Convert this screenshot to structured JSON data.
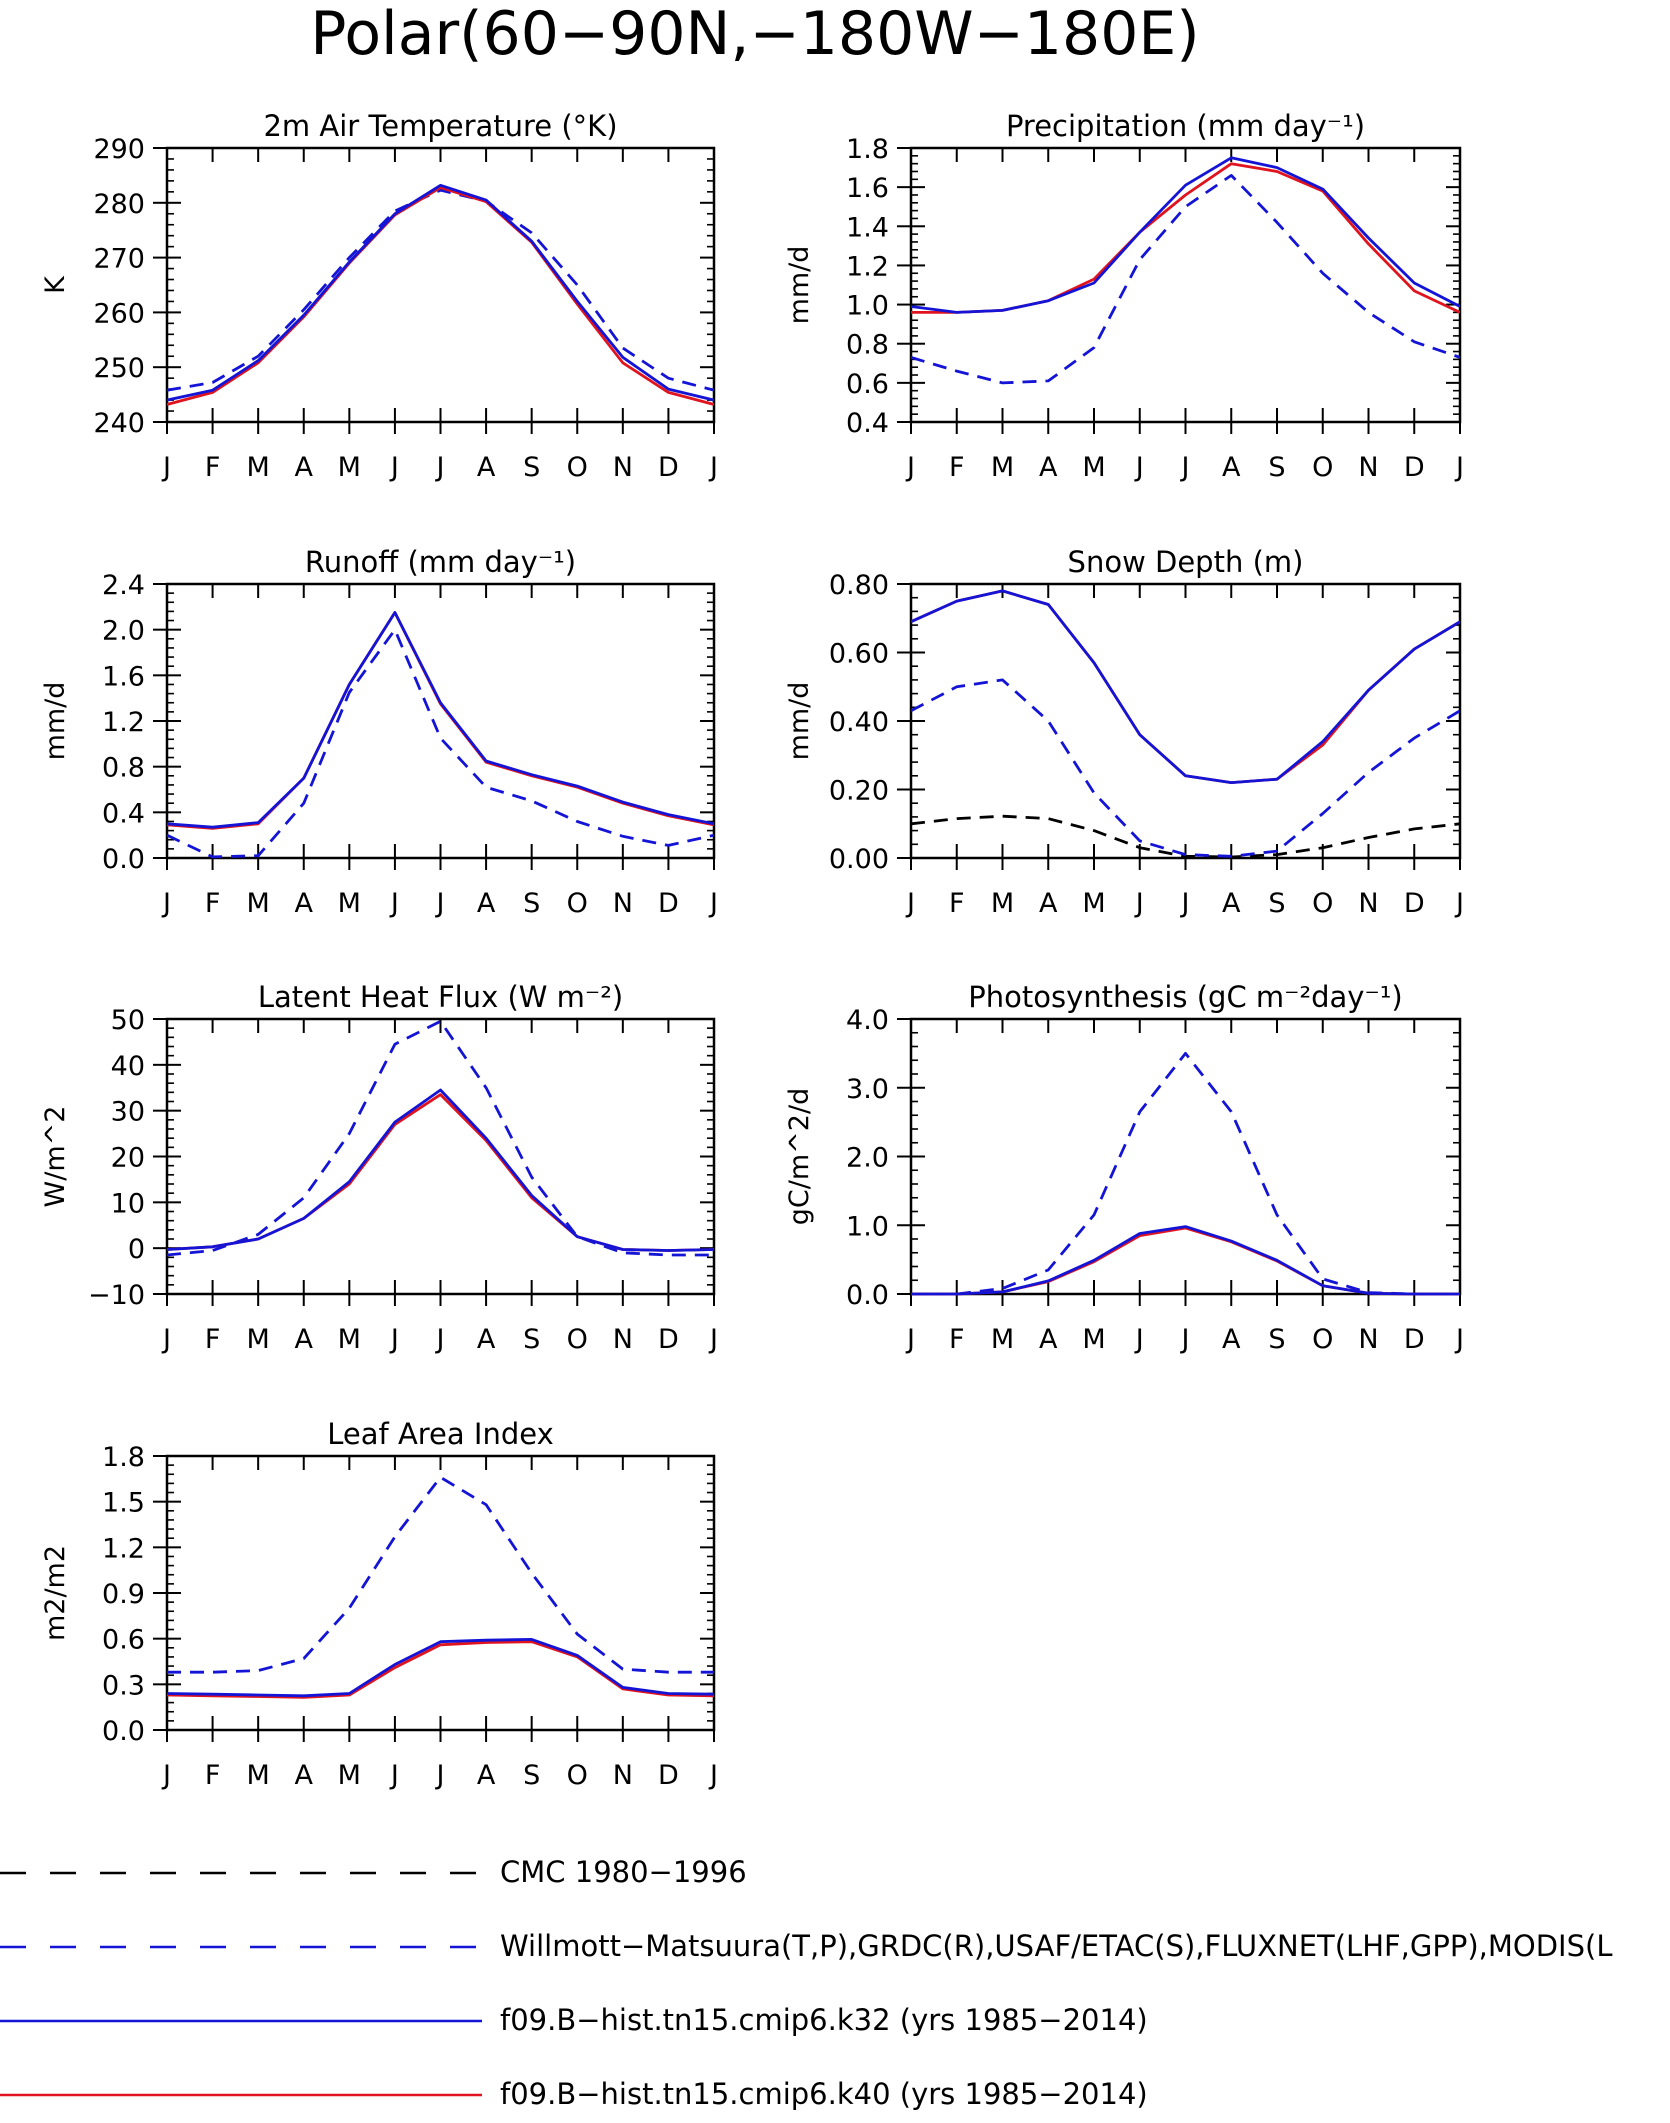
{
  "title": "Polar(60−90N,−180W−180E)",
  "colors": {
    "model_k32": "#1414d6",
    "model_k40": "#e0141e",
    "obs": "#1414d6",
    "cmc": "#000000"
  },
  "chart_data": [
    {
      "type": "line",
      "title": "2m Air Temperature (°K)",
      "ylabel": "K",
      "categories": [
        "J",
        "F",
        "M",
        "A",
        "M",
        "J",
        "J",
        "A",
        "S",
        "O",
        "N",
        "D",
        "J"
      ],
      "ylim": [
        240,
        290
      ],
      "yticks": [
        240,
        250,
        260,
        270,
        280,
        290
      ],
      "ytick_labels": [
        "240",
        "250",
        "260",
        "270",
        "280",
        "290"
      ],
      "series": [
        {
          "key": "obs",
          "values": [
            245.8,
            247.2,
            252.0,
            260.5,
            270.0,
            278.5,
            282.3,
            280.3,
            274.5,
            265.0,
            253.5,
            248.0,
            245.8
          ]
        },
        {
          "key": "k40",
          "values": [
            243.2,
            245.4,
            250.8,
            259.2,
            269.0,
            277.8,
            282.8,
            280.2,
            272.8,
            261.5,
            250.8,
            245.4,
            243.2
          ]
        },
        {
          "key": "k32",
          "values": [
            244.0,
            245.8,
            251.2,
            259.5,
            269.2,
            278.0,
            283.2,
            280.5,
            273.0,
            262.0,
            251.8,
            246.0,
            244.0
          ]
        }
      ]
    },
    {
      "type": "line",
      "title": "Precipitation (mm day⁻¹)",
      "ylabel": "mm/d",
      "categories": [
        "J",
        "F",
        "M",
        "A",
        "M",
        "J",
        "J",
        "A",
        "S",
        "O",
        "N",
        "D",
        "J"
      ],
      "ylim": [
        0.4,
        1.8
      ],
      "yticks": [
        0.4,
        0.6,
        0.8,
        1.0,
        1.2,
        1.4,
        1.6,
        1.8
      ],
      "ytick_labels": [
        "0.4",
        "0.6",
        "0.8",
        "1.0",
        "1.2",
        "1.4",
        "1.6",
        "1.8"
      ],
      "series": [
        {
          "key": "obs",
          "values": [
            0.73,
            0.66,
            0.6,
            0.61,
            0.78,
            1.23,
            1.5,
            1.66,
            1.42,
            1.16,
            0.96,
            0.81,
            0.73
          ]
        },
        {
          "key": "k40",
          "values": [
            0.96,
            0.96,
            0.97,
            1.02,
            1.13,
            1.37,
            1.56,
            1.72,
            1.68,
            1.58,
            1.31,
            1.07,
            0.96
          ]
        },
        {
          "key": "k32",
          "values": [
            0.99,
            0.96,
            0.97,
            1.02,
            1.11,
            1.37,
            1.61,
            1.75,
            1.7,
            1.59,
            1.34,
            1.11,
            0.99
          ]
        }
      ]
    },
    {
      "type": "line",
      "title": "Runoff (mm day⁻¹)",
      "ylabel": "mm/d",
      "categories": [
        "J",
        "F",
        "M",
        "A",
        "M",
        "J",
        "J",
        "A",
        "S",
        "O",
        "N",
        "D",
        "J"
      ],
      "ylim": [
        0.0,
        2.4
      ],
      "yticks": [
        0.0,
        0.4,
        0.8,
        1.2,
        1.6,
        2.0,
        2.4
      ],
      "ytick_labels": [
        "0.0",
        "0.4",
        "0.8",
        "1.2",
        "1.6",
        "2.0",
        "2.4"
      ],
      "series": [
        {
          "key": "obs",
          "values": [
            0.2,
            0.01,
            0.02,
            0.48,
            1.45,
            2.0,
            1.05,
            0.62,
            0.5,
            0.32,
            0.19,
            0.11,
            0.2
          ]
        },
        {
          "key": "k40",
          "values": [
            0.29,
            0.26,
            0.3,
            0.7,
            1.52,
            2.15,
            1.35,
            0.84,
            0.72,
            0.62,
            0.48,
            0.37,
            0.29
          ]
        },
        {
          "key": "k32",
          "values": [
            0.3,
            0.27,
            0.31,
            0.7,
            1.52,
            2.15,
            1.36,
            0.85,
            0.73,
            0.63,
            0.49,
            0.38,
            0.3
          ]
        }
      ]
    },
    {
      "type": "line",
      "title": "Snow Depth (m)",
      "ylabel": "mm/d",
      "categories": [
        "J",
        "F",
        "M",
        "A",
        "M",
        "J",
        "J",
        "A",
        "S",
        "O",
        "N",
        "D",
        "J"
      ],
      "ylim": [
        0.0,
        0.8
      ],
      "yticks": [
        0.0,
        0.2,
        0.4,
        0.6,
        0.8
      ],
      "ytick_labels": [
        "0.00",
        "0.20",
        "0.40",
        "0.60",
        "0.80"
      ],
      "series": [
        {
          "key": "cmc",
          "values": [
            0.1,
            0.115,
            0.122,
            0.115,
            0.08,
            0.03,
            0.005,
            0.003,
            0.01,
            0.03,
            0.06,
            0.085,
            0.1
          ]
        },
        {
          "key": "obs",
          "values": [
            0.43,
            0.5,
            0.52,
            0.4,
            0.19,
            0.05,
            0.01,
            0.005,
            0.02,
            0.13,
            0.25,
            0.35,
            0.43
          ]
        },
        {
          "key": "k40",
          "values": [
            0.69,
            0.75,
            0.78,
            0.74,
            0.57,
            0.36,
            0.24,
            0.22,
            0.23,
            0.33,
            0.49,
            0.61,
            0.69
          ]
        },
        {
          "key": "k32",
          "values": [
            0.69,
            0.75,
            0.78,
            0.74,
            0.57,
            0.36,
            0.24,
            0.22,
            0.23,
            0.34,
            0.49,
            0.61,
            0.69
          ]
        }
      ]
    },
    {
      "type": "line",
      "title": "Latent Heat Flux (W m⁻²)",
      "ylabel": "W/m^2",
      "categories": [
        "J",
        "F",
        "M",
        "A",
        "M",
        "J",
        "J",
        "A",
        "S",
        "O",
        "N",
        "D",
        "J"
      ],
      "ylim": [
        -10,
        50
      ],
      "yticks": [
        -10,
        0,
        10,
        20,
        30,
        40,
        50
      ],
      "ytick_labels": [
        "−10",
        "0",
        "10",
        "20",
        "30",
        "40",
        "50"
      ],
      "series": [
        {
          "key": "obs",
          "values": [
            -1.5,
            -0.5,
            3.0,
            11.0,
            25.0,
            44.5,
            49.5,
            35.0,
            15.5,
            2.5,
            -1.0,
            -1.5,
            -1.5
          ]
        },
        {
          "key": "k40",
          "values": [
            -0.3,
            0.3,
            2.0,
            6.5,
            14.0,
            27.0,
            33.5,
            23.5,
            11.0,
            2.5,
            -0.3,
            -0.5,
            -0.3
          ]
        },
        {
          "key": "k32",
          "values": [
            -0.3,
            0.3,
            2.0,
            6.5,
            14.5,
            27.5,
            34.5,
            24.0,
            11.5,
            2.5,
            -0.3,
            -0.5,
            -0.3
          ]
        }
      ]
    },
    {
      "type": "line",
      "title": "Photosynthesis (gC m⁻²day⁻¹)",
      "ylabel": "gC/m^2/d",
      "categories": [
        "J",
        "F",
        "M",
        "A",
        "M",
        "J",
        "J",
        "A",
        "S",
        "O",
        "N",
        "D",
        "J"
      ],
      "ylim": [
        0.0,
        4.0
      ],
      "yticks": [
        0.0,
        1.0,
        2.0,
        3.0,
        4.0
      ],
      "ytick_labels": [
        "0.0",
        "1.0",
        "2.0",
        "3.0",
        "4.0"
      ],
      "series": [
        {
          "key": "obs",
          "values": [
            0.0,
            0.0,
            0.08,
            0.35,
            1.15,
            2.65,
            3.5,
            2.65,
            1.15,
            0.22,
            0.02,
            0.0,
            0.0
          ]
        },
        {
          "key": "k40",
          "values": [
            0.0,
            0.0,
            0.03,
            0.18,
            0.47,
            0.85,
            0.96,
            0.76,
            0.48,
            0.12,
            0.01,
            0.0,
            0.0
          ]
        },
        {
          "key": "k32",
          "values": [
            0.0,
            0.0,
            0.03,
            0.19,
            0.49,
            0.88,
            0.98,
            0.77,
            0.49,
            0.12,
            0.01,
            0.0,
            0.0
          ]
        }
      ]
    },
    {
      "type": "line",
      "title": "Leaf Area Index",
      "ylabel": "m2/m2",
      "categories": [
        "J",
        "F",
        "M",
        "A",
        "M",
        "J",
        "J",
        "A",
        "S",
        "O",
        "N",
        "D",
        "J"
      ],
      "ylim": [
        0.0,
        1.8
      ],
      "yticks": [
        0.0,
        0.3,
        0.6,
        0.9,
        1.2,
        1.5,
        1.8
      ],
      "ytick_labels": [
        "0.0",
        "0.3",
        "0.6",
        "0.9",
        "1.2",
        "1.5",
        "1.8"
      ],
      "series": [
        {
          "key": "obs",
          "values": [
            0.38,
            0.38,
            0.39,
            0.47,
            0.8,
            1.27,
            1.66,
            1.48,
            1.03,
            0.63,
            0.4,
            0.38,
            0.38
          ]
        },
        {
          "key": "k40",
          "values": [
            0.23,
            0.225,
            0.22,
            0.215,
            0.23,
            0.41,
            0.56,
            0.575,
            0.58,
            0.48,
            0.27,
            0.23,
            0.225
          ]
        },
        {
          "key": "k32",
          "values": [
            0.24,
            0.235,
            0.23,
            0.225,
            0.24,
            0.43,
            0.58,
            0.59,
            0.595,
            0.49,
            0.28,
            0.24,
            0.235
          ]
        }
      ]
    }
  ],
  "legend": [
    {
      "key": "cmc",
      "label": "CMC 1980−1996",
      "style": "dashed",
      "color": "#000000"
    },
    {
      "key": "obs",
      "label": "Willmott−Matsuura(T,P),GRDC(R),USAF/ETAC(S),FLUXNET(LHF,GPP),MODIS(L",
      "style": "dashed",
      "color": "#1414d6"
    },
    {
      "key": "k32",
      "label": "f09.B−hist.tn15.cmip6.k32 (yrs 1985−2014)",
      "style": "solid",
      "color": "#1414d6"
    },
    {
      "key": "k40",
      "label": "f09.B−hist.tn15.cmip6.k40 (yrs 1985−2014)",
      "style": "solid",
      "color": "#e0141e"
    }
  ]
}
